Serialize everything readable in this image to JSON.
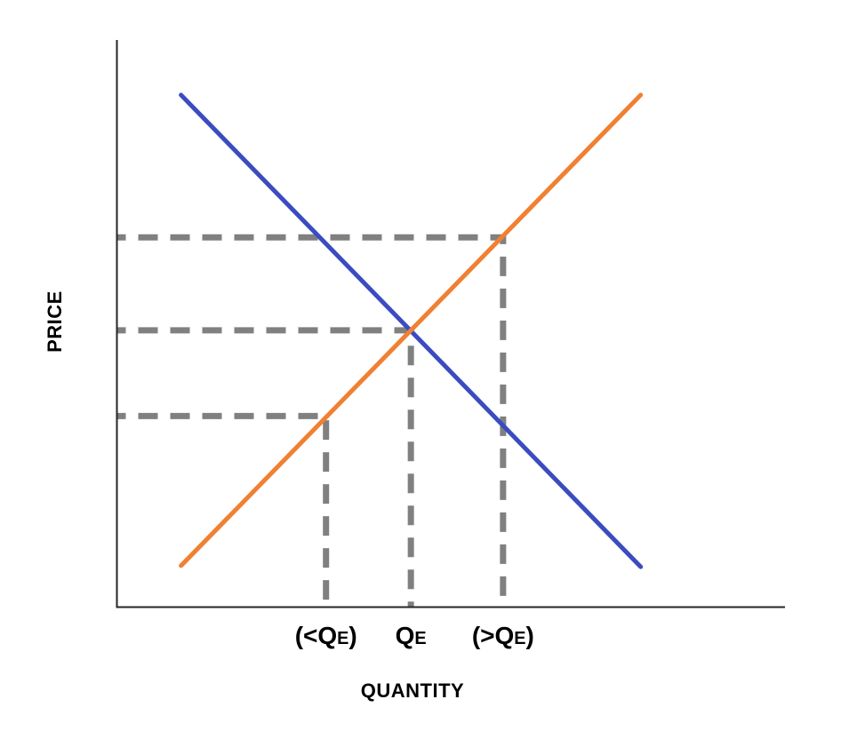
{
  "chart_data": {
    "type": "line",
    "title": "",
    "xlabel": "QUANTITY",
    "ylabel": "PRICE",
    "x_range": [
      0,
      100
    ],
    "y_range": [
      0,
      100
    ],
    "grid": false,
    "legend": false,
    "axis_color": "#262626",
    "text_color": "#000000",
    "series": [
      {
        "name": "demand-curve",
        "color": "#3B4CC0",
        "points": [
          [
            9.6,
            90.3
          ],
          [
            78.4,
            7.1
          ]
        ]
      },
      {
        "name": "supply-curve",
        "color": "#F08032",
        "points": [
          [
            9.6,
            7.3
          ],
          [
            78.4,
            90.3
          ]
        ]
      }
    ],
    "equilibrium": {
      "quantity": 44.0,
      "price": 48.8
    },
    "guides": [
      {
        "id": "below-equilibrium",
        "quantity": 31.3,
        "price": 33.7,
        "tick_label": {
          "pre": "(<Q",
          "sub": "E",
          "post": ")",
          "text": "(<QE)"
        }
      },
      {
        "id": "equilibrium",
        "quantity": 44.0,
        "price": 48.8,
        "tick_label": {
          "pre": "Q",
          "sub": "E",
          "post": "",
          "text": "QE"
        }
      },
      {
        "id": "above-equilibrium",
        "quantity": 57.8,
        "price": 65.2,
        "tick_label": {
          "pre": "(>Q",
          "sub": "E",
          "post": ")",
          "text": "(>QE)"
        }
      }
    ],
    "guide_style": {
      "color": "#808080",
      "dash": [
        22,
        14
      ],
      "width": 7
    }
  }
}
